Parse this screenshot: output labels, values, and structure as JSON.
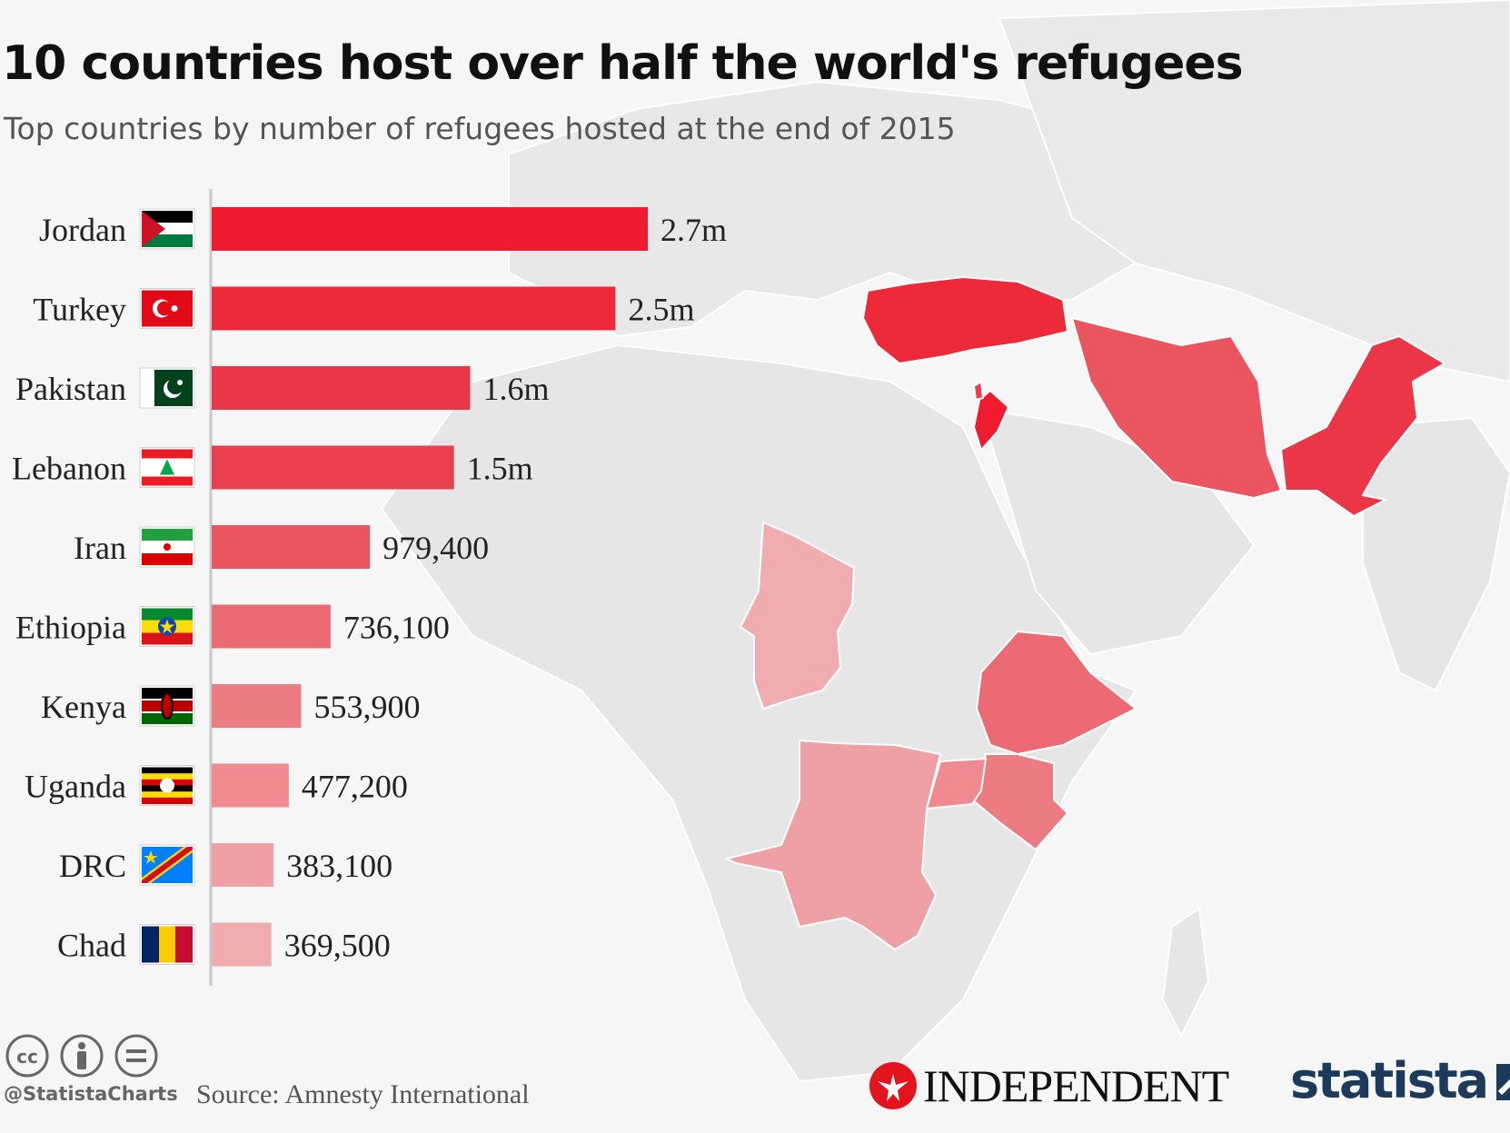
{
  "title": "10 countries host over half the world's refugees",
  "subtitle": "Top countries by number of refugees hosted at the end of 2015",
  "chart_data": {
    "type": "bar",
    "orientation": "horizontal",
    "categories": [
      "Jordan",
      "Turkey",
      "Pakistan",
      "Lebanon",
      "Iran",
      "Ethiopia",
      "Kenya",
      "Uganda",
      "DRC",
      "Chad"
    ],
    "values": [
      2700000,
      2500000,
      1600000,
      1500000,
      979400,
      736100,
      553900,
      477200,
      383100,
      369500
    ],
    "value_labels": [
      "2.7m",
      "2.5m",
      "1.6m",
      "1.5m",
      "979,400",
      "736,100",
      "553,900",
      "477,200",
      "383,100",
      "369,500"
    ],
    "bar_colors": [
      "#ee1c2e",
      "#ec2a3a",
      "#ea3646",
      "#ea3f4e",
      "#ea5560",
      "#eb6a73",
      "#ec7b82",
      "#ee8a90",
      "#efa0a4",
      "#f0acaf"
    ],
    "xlim": [
      0,
      2700000
    ]
  },
  "footer": {
    "handle": "@StatistaCharts",
    "source": "Source: Amnesty International",
    "publisher_logo": "INDEPENDENT",
    "brand_logo": "statista"
  }
}
